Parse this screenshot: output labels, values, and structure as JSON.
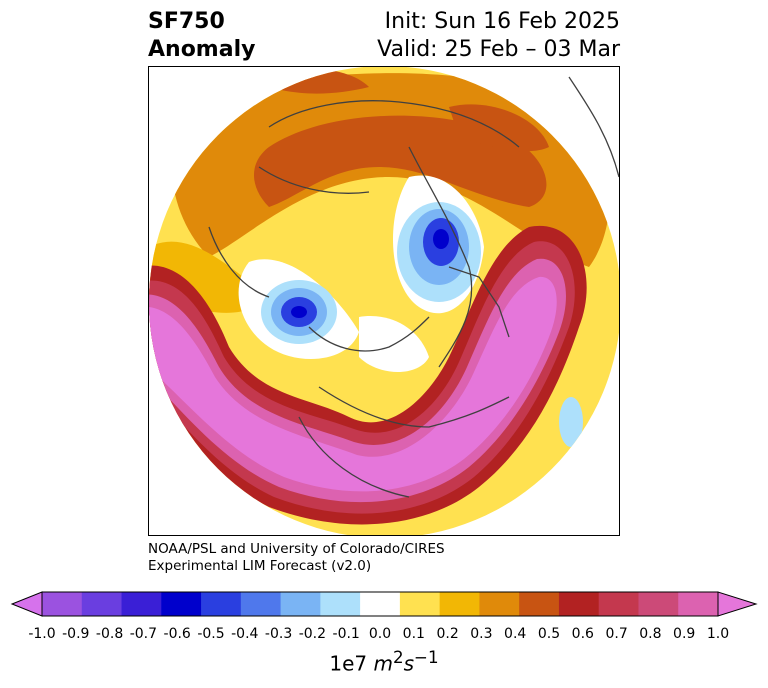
{
  "title": {
    "left_line1": "SF750",
    "left_line2": "Anomaly",
    "right_line1": "Init: Sun 16 Feb 2025",
    "right_line2": "Valid: 25 Feb – 03 Mar"
  },
  "credit": {
    "line1": "NOAA/PSL and University of Colorado/CIRES",
    "line2": "Experimental LIM Forecast (v2.0)"
  },
  "colorbar": {
    "ticks": [
      "-1.0",
      "-0.9",
      "-0.8",
      "-0.7",
      "-0.6",
      "-0.5",
      "-0.4",
      "-0.3",
      "-0.2",
      "-0.1",
      "0.0",
      "0.1",
      "0.2",
      "0.3",
      "0.4",
      "0.5",
      "0.6",
      "0.7",
      "0.8",
      "0.9",
      "1.0"
    ],
    "colors": [
      "#9b52e0",
      "#6a3ee0",
      "#3a1fd6",
      "#0000cc",
      "#2a3fe0",
      "#4f78ec",
      "#7ab4f4",
      "#ade0fb",
      "#ffffff",
      "#ffe150",
      "#f2b705",
      "#e08a0a",
      "#c85412",
      "#b22222",
      "#c4384e",
      "#cc4a78",
      "#dc62b0"
    ],
    "under_color": "#d672ec",
    "over_color": "#e576da",
    "units_base": "1e7 ",
    "units_m": "m",
    "units_m_exp": "2",
    "units_s": "s",
    "units_s_exp": "−1"
  }
}
